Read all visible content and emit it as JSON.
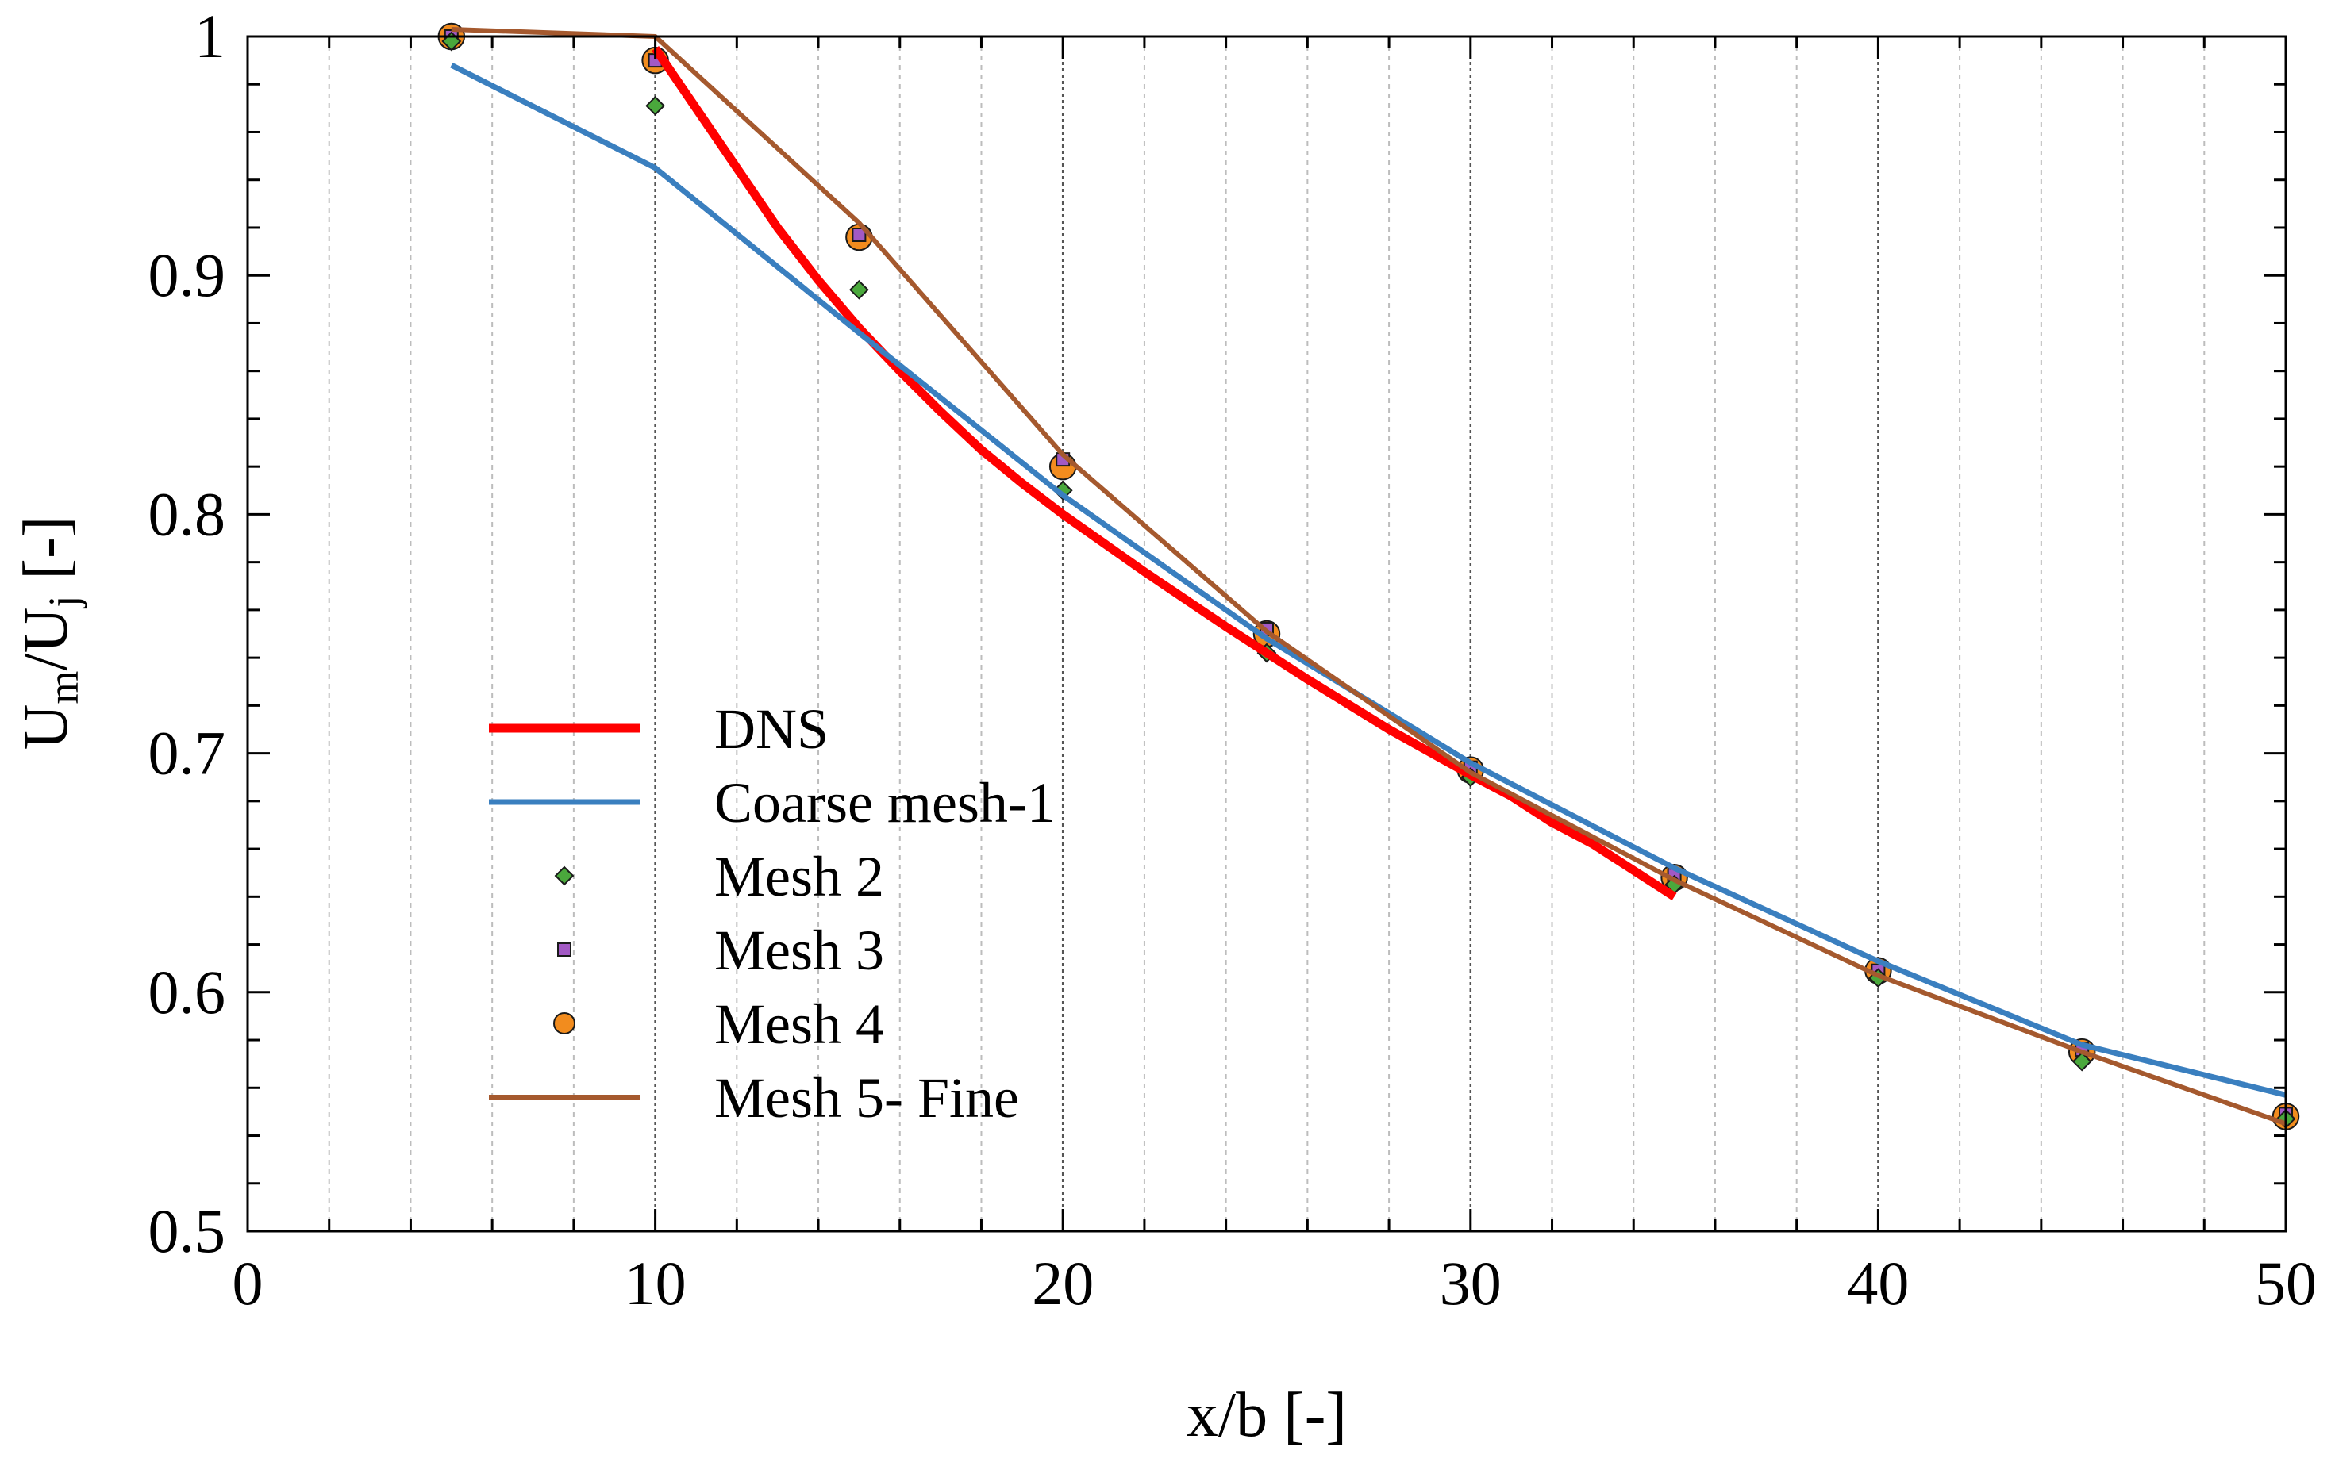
{
  "chart_data": {
    "type": "line",
    "title": "",
    "xlabel": "x/b [-]",
    "ylabel": {
      "base": "U",
      "sub1": "m",
      "mid": "/U",
      "sub2": "j",
      "tail": " [-]"
    },
    "xlim": [
      0,
      50
    ],
    "ylim": [
      0.5,
      1.0
    ],
    "x_ticks": [
      0,
      10,
      20,
      30,
      40,
      50
    ],
    "x_tick_labels": [
      "0",
      "10",
      "20",
      "30",
      "40",
      "50"
    ],
    "y_ticks": [
      0.5,
      0.6,
      0.7,
      0.8,
      0.9,
      1.0
    ],
    "y_tick_labels": [
      "0.5",
      "0.6",
      "0.7",
      "0.8",
      "0.9",
      "1"
    ],
    "grid": "vertical",
    "legend_position": "center-left",
    "series": [
      {
        "name": "DNS",
        "kind": "line",
        "color": "#ff0000",
        "x": [
          10,
          10.8,
          12,
          13,
          14,
          15,
          16,
          17,
          18,
          19,
          20,
          22,
          24,
          26,
          28,
          30,
          31,
          32,
          33,
          34,
          35
        ],
        "y": [
          0.995,
          0.975,
          0.945,
          0.92,
          0.898,
          0.878,
          0.86,
          0.843,
          0.827,
          0.813,
          0.8,
          0.776,
          0.753,
          0.731,
          0.71,
          0.691,
          0.682,
          0.671,
          0.662,
          0.651,
          0.64
        ]
      },
      {
        "name": "Coarse mesh-1",
        "kind": "line",
        "color": "#3a7fbf",
        "x": [
          5,
          10,
          15,
          20,
          25,
          30,
          35,
          40,
          45,
          50
        ],
        "y": [
          0.988,
          0.945,
          0.876,
          0.808,
          0.748,
          0.696,
          0.652,
          0.613,
          0.578,
          0.557
        ]
      },
      {
        "name": "Mesh 2",
        "kind": "marker",
        "marker": "diamond",
        "color": "#4aa83c",
        "x": [
          5,
          10,
          15,
          20,
          25,
          30,
          35,
          40,
          45,
          50
        ],
        "y": [
          0.998,
          0.971,
          0.894,
          0.81,
          0.742,
          0.69,
          0.645,
          0.606,
          0.571,
          0.547
        ]
      },
      {
        "name": "Mesh 3",
        "kind": "marker",
        "marker": "square",
        "color": "#a259c4",
        "x": [
          5,
          10,
          15,
          20,
          25,
          30,
          35,
          40,
          45,
          50
        ],
        "y": [
          1.0,
          0.99,
          0.917,
          0.823,
          0.752,
          0.694,
          0.649,
          0.609,
          0.576,
          0.549
        ]
      },
      {
        "name": "Mesh 4",
        "kind": "marker",
        "marker": "circle",
        "color": "#f28c1e",
        "x": [
          5,
          10,
          15,
          20,
          25,
          30,
          35,
          40,
          45,
          50
        ],
        "y": [
          1.0,
          0.99,
          0.916,
          0.82,
          0.75,
          0.693,
          0.648,
          0.609,
          0.575,
          0.548
        ]
      },
      {
        "name": "Mesh 5- Fine",
        "kind": "line",
        "color": "#a5592e",
        "x": [
          5,
          10,
          15,
          20,
          25,
          30,
          35,
          40,
          45,
          50
        ],
        "y": [
          1.003,
          1.0,
          0.922,
          0.825,
          0.751,
          0.692,
          0.647,
          0.607,
          0.575,
          0.545
        ]
      }
    ]
  }
}
